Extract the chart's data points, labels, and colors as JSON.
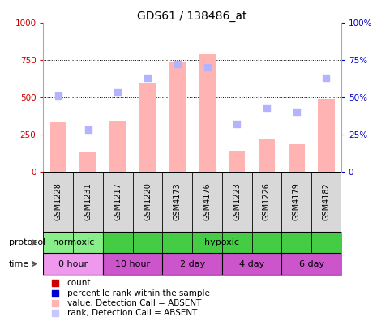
{
  "title": "GDS61 / 138486_at",
  "samples": [
    "GSM1228",
    "GSM1231",
    "GSM1217",
    "GSM1220",
    "GSM4173",
    "GSM4176",
    "GSM1223",
    "GSM1226",
    "GSM4179",
    "GSM4182"
  ],
  "bar_values": [
    330,
    130,
    340,
    590,
    730,
    790,
    140,
    220,
    185,
    490
  ],
  "rank_values": [
    51,
    28,
    53,
    63,
    72,
    70,
    32,
    43,
    40,
    63
  ],
  "bar_color": "#ffb3b3",
  "rank_color": "#b3b3ff",
  "ylim_left": [
    0,
    1000
  ],
  "ylim_right": [
    0,
    100
  ],
  "yticks_left": [
    0,
    250,
    500,
    750,
    1000
  ],
  "yticks_right": [
    0,
    25,
    50,
    75,
    100
  ],
  "left_tick_color": "#cc0000",
  "right_tick_color": "#0000cc",
  "normoxic_color": "#88ee88",
  "hypoxic_color": "#44cc44",
  "time_color_light": "#ee99ee",
  "time_color_dark": "#cc55cc",
  "time_labels": [
    "0 hour",
    "10 hour",
    "2 day",
    "4 day",
    "6 day"
  ],
  "time_bg_colors": [
    "#ee99ee",
    "#cc55cc",
    "#cc55cc",
    "#cc55cc",
    "#cc55cc"
  ],
  "legend_colors": [
    "#cc0000",
    "#0000cc",
    "#ffb3b3",
    "#c8c8ff"
  ],
  "legend_labels": [
    "count",
    "percentile rank within the sample",
    "value, Detection Call = ABSENT",
    "rank, Detection Call = ABSENT"
  ],
  "label_area_color": "#d8d8d8",
  "background_color": "#ffffff"
}
